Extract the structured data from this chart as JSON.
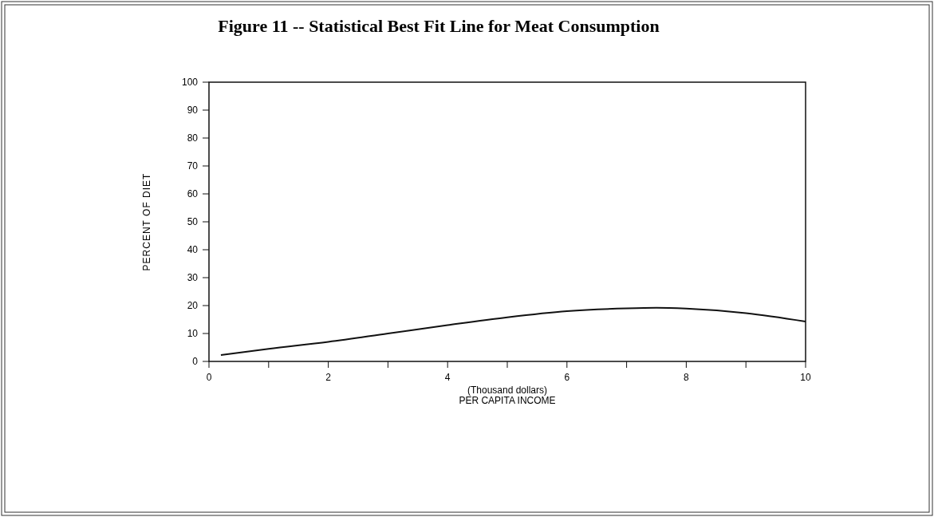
{
  "chart_data": {
    "type": "line",
    "title": "Figure 11 -- Statistical Best Fit Line for Meat Consumption",
    "xlabel": "(Thousand dollars)\nPER CAPITA INCOME",
    "ylabel": "PERCENT OF DIET",
    "x": [
      0.2,
      1,
      2,
      3,
      4,
      5,
      6,
      7,
      7.5,
      8,
      9,
      10
    ],
    "series": [
      {
        "color": "#111111",
        "values": [
          2.3,
          4.5,
          7,
          10,
          13,
          15.8,
          18,
          19,
          19.2,
          18.9,
          17.3,
          14.3
        ]
      }
    ],
    "xlim": [
      0,
      10
    ],
    "ylim": [
      0,
      100
    ],
    "xticks": [
      0,
      {
        "value": 1,
        "label": null
      },
      2,
      {
        "value": 3,
        "label": null
      },
      4,
      {
        "value": 5,
        "label": null
      },
      6,
      {
        "value": 7,
        "label": null
      },
      8,
      {
        "value": 9,
        "label": null
      },
      10
    ],
    "yticks": [
      0,
      10,
      20,
      30,
      40,
      50,
      60,
      70,
      80,
      90,
      100
    ],
    "grid": false,
    "marker": "none",
    "line_style": "solid"
  }
}
